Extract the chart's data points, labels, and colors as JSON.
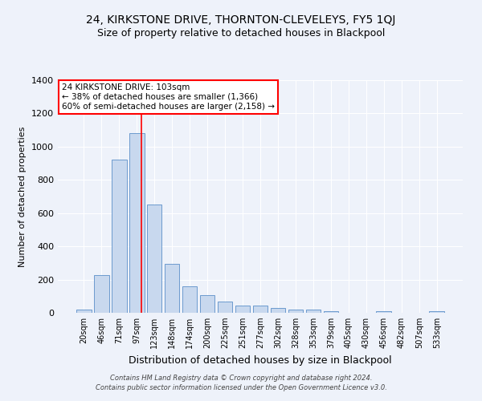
{
  "title": "24, KIRKSTONE DRIVE, THORNTON-CLEVELEYS, FY5 1QJ",
  "subtitle": "Size of property relative to detached houses in Blackpool",
  "xlabel": "Distribution of detached houses by size in Blackpool",
  "ylabel": "Number of detached properties",
  "bin_labels": [
    "20sqm",
    "46sqm",
    "71sqm",
    "97sqm",
    "123sqm",
    "148sqm",
    "174sqm",
    "200sqm",
    "225sqm",
    "251sqm",
    "277sqm",
    "302sqm",
    "328sqm",
    "353sqm",
    "379sqm",
    "405sqm",
    "430sqm",
    "456sqm",
    "482sqm",
    "507sqm",
    "533sqm"
  ],
  "bar_values": [
    20,
    225,
    920,
    1080,
    650,
    295,
    160,
    105,
    68,
    45,
    45,
    28,
    20,
    18,
    12,
    0,
    0,
    10,
    0,
    0,
    10
  ],
  "bar_color": "#c8d8ee",
  "bar_edge_color": "#5b8fc9",
  "red_line_bin_index": 3.25,
  "annotation_text": "24 KIRKSTONE DRIVE: 103sqm\n← 38% of detached houses are smaller (1,366)\n60% of semi-detached houses are larger (2,158) →",
  "annotation_box_color": "white",
  "annotation_box_edge_color": "red",
  "vline_color": "red",
  "ylim": [
    0,
    1400
  ],
  "yticks": [
    0,
    200,
    400,
    600,
    800,
    1000,
    1200,
    1400
  ],
  "footer_line1": "Contains HM Land Registry data © Crown copyright and database right 2024.",
  "footer_line2": "Contains public sector information licensed under the Open Government Licence v3.0.",
  "bg_color": "#eef2fa",
  "grid_color": "white",
  "title_fontsize": 10,
  "subtitle_fontsize": 9,
  "xlabel_fontsize": 9,
  "ylabel_fontsize": 8,
  "annotation_fontsize": 7.5,
  "footer_fontsize": 6
}
